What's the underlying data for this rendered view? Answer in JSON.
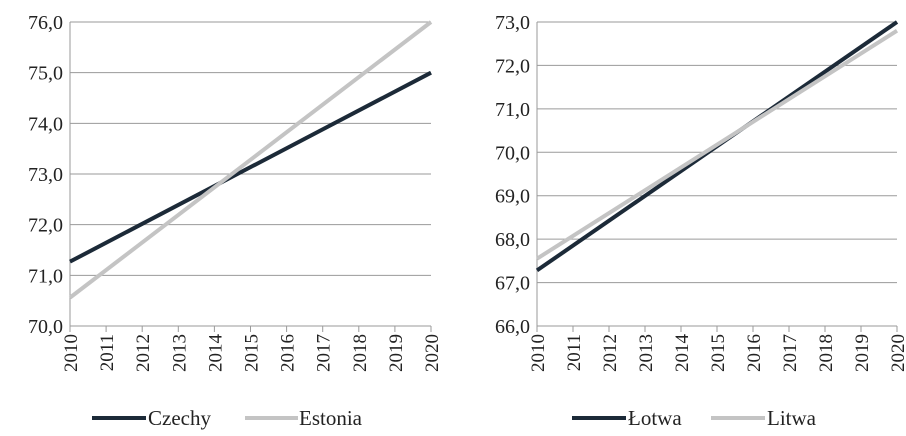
{
  "chart_data": [
    {
      "type": "line",
      "categories": [
        "2010",
        "2011",
        "2012",
        "2013",
        "2014",
        "2015",
        "2016",
        "2017",
        "2018",
        "2019",
        "2020"
      ],
      "x": [
        2010,
        2020
      ],
      "ylim": [
        70.0,
        76.0
      ],
      "yticks": [
        "70,0",
        "71,0",
        "72,0",
        "73,0",
        "74,0",
        "75,0",
        "76,0"
      ],
      "grid": true,
      "legend": "bottom",
      "series": [
        {
          "name": "Czechy",
          "color": "#1c2a38",
          "values": [
            71.27,
            75.0
          ]
        },
        {
          "name": "Estonia",
          "color": "#c4c4c4",
          "values": [
            70.56,
            76.0
          ]
        }
      ]
    },
    {
      "type": "line",
      "categories": [
        "2010",
        "2011",
        "2012",
        "2013",
        "2014",
        "2015",
        "2016",
        "2017",
        "2018",
        "2019",
        "2020"
      ],
      "x": [
        2010,
        2020
      ],
      "ylim": [
        66.0,
        73.0
      ],
      "yticks": [
        "66,0",
        "67,0",
        "68,0",
        "69,0",
        "70,0",
        "71,0",
        "72,0",
        "73,0"
      ],
      "grid": true,
      "legend": "bottom",
      "series": [
        {
          "name": "Łotwa",
          "color": "#1c2a38",
          "values": [
            67.28,
            73.0
          ]
        },
        {
          "name": "Litwa",
          "color": "#c4c4c4",
          "values": [
            67.55,
            72.8
          ]
        }
      ]
    }
  ]
}
